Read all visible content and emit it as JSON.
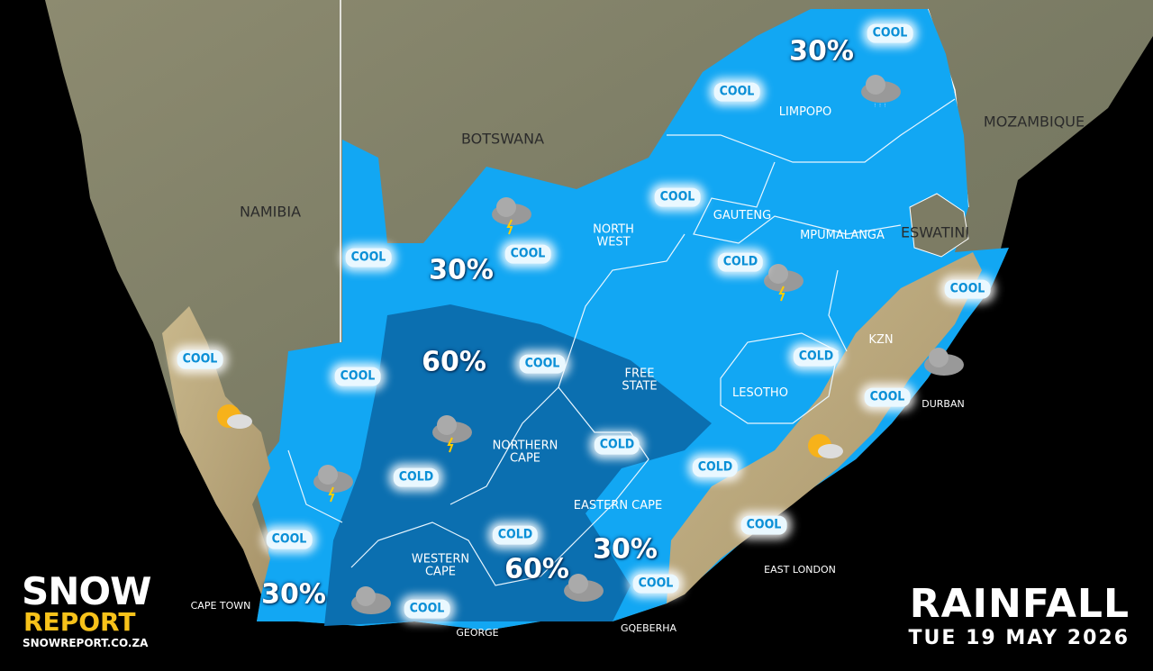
{
  "map": {
    "countries": [
      "NAMIBIA",
      "BOTSWANA",
      "MOZAMBIQUE",
      "ESWATINI",
      "LESOTHO"
    ],
    "provinces": [
      "LIMPOPO",
      "NORTH WEST",
      "GAUTENG",
      "MPUMALANGA",
      "FREE STATE",
      "KZN",
      "NORTHERN CAPE",
      "EASTERN CAPE",
      "WESTERN CAPE"
    ],
    "cities": [
      "CAPE TOWN",
      "GEORGE",
      "GQEBERHA",
      "EAST LONDON",
      "DURBAN"
    ],
    "rain_chances": [
      "30%",
      "30%",
      "30%",
      "30%",
      "60%",
      "60%"
    ],
    "temperature_labels": [
      "COOL",
      "COOL",
      "COOL",
      "COOL",
      "COOL",
      "COLD",
      "COOL",
      "COOL",
      "COOL",
      "COLD",
      "COOL",
      "COOL",
      "COLD",
      "COLD",
      "COLD",
      "COOL",
      "COOL",
      "COLD",
      "COOL",
      "COOL"
    ]
  },
  "brand": {
    "top": "SNOW",
    "bottom": "REPORT",
    "website": "SNOWREPORT.CO.ZA"
  },
  "title": {
    "heading": "RAINFALL",
    "date": "TUE 19 MAY 2026"
  }
}
